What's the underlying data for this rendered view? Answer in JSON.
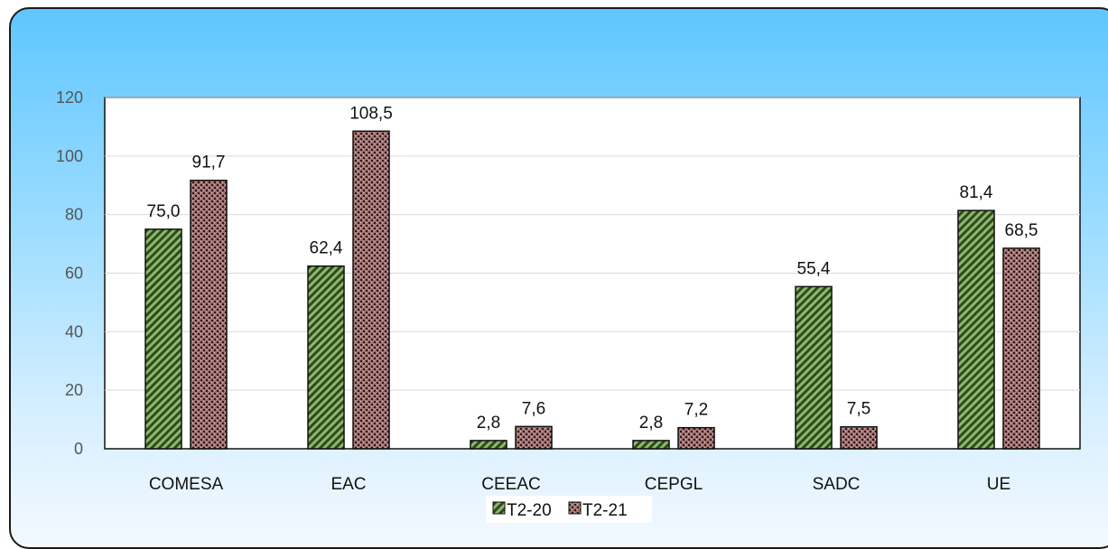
{
  "chart_data": {
    "type": "bar",
    "title": "",
    "xlabel": "",
    "ylabel": "",
    "categories": [
      "COMESA",
      "EAC",
      "CEEAC",
      "CEPGL",
      "SADC",
      "UE"
    ],
    "series": [
      {
        "name": "T2-20",
        "values": [
          75.0,
          62.4,
          2.8,
          2.8,
          55.4,
          81.4
        ],
        "labels": [
          "75,0",
          "62,4",
          "2,8",
          "2,8",
          "55,4",
          "81,4"
        ],
        "color": "#76a156",
        "pattern": "diagonal-hatch"
      },
      {
        "name": "T2-21",
        "values": [
          91.7,
          108.5,
          7.6,
          7.2,
          7.5,
          68.5
        ],
        "labels": [
          "91,7",
          "108,5",
          "7,6",
          "7,2",
          "7,5",
          "68,5"
        ],
        "color": "#a07272",
        "pattern": "dots"
      }
    ],
    "ylim": [
      0,
      120
    ],
    "yticks": [
      "0",
      "20",
      "40",
      "60",
      "80",
      "100",
      "120"
    ],
    "grid": true,
    "legend_position": "bottom"
  }
}
